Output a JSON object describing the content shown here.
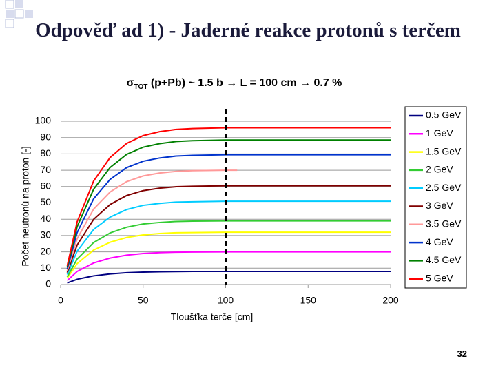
{
  "slide": {
    "title": "Odpověď ad 1) - Jaderné reakce protonů s terčem",
    "subtitle_symbol": "σ",
    "subtitle_subscript": "TOT",
    "subtitle": "(p+Pb) ~ 1.5 b → L = 100 cm → 0.7 %",
    "page_number": "32"
  },
  "chart_data": {
    "type": "line",
    "x_label": "Tloušťka terče [cm]",
    "y_label": "Počet neutronů na proton [-]",
    "x": [
      4,
      10,
      20,
      30,
      40,
      50,
      60,
      70,
      80,
      100,
      107,
      120,
      150,
      200
    ],
    "xlim": [
      0,
      200
    ],
    "xticks": [
      0,
      50,
      100,
      150,
      200
    ],
    "ylim": [
      0,
      100
    ],
    "yticks": [
      0,
      10,
      20,
      30,
      40,
      50,
      60,
      70,
      80,
      90,
      100
    ],
    "grid": true,
    "legend": "right",
    "reference_line_x": 100,
    "series": [
      {
        "name": "0.5 GeV",
        "color": "#000080",
        "values": [
          1,
          3.2,
          5.3,
          6.5,
          7.2,
          7.6,
          7.8,
          7.9,
          8,
          8,
          8,
          8,
          8,
          8
        ]
      },
      {
        "name": "1 GeV",
        "color": "#ff00ff",
        "values": [
          2.4,
          8,
          13.2,
          16.2,
          18,
          19,
          19.5,
          19.8,
          19.9,
          20,
          20,
          20,
          20,
          20
        ]
      },
      {
        "name": "1.5 GeV",
        "color": "#ffff00",
        "values": [
          3.8,
          12.8,
          21.1,
          25.9,
          28.8,
          30.4,
          31.2,
          31.7,
          31.8,
          32,
          32,
          32,
          32,
          32
        ]
      },
      {
        "name": "2 GeV",
        "color": "#33cc33",
        "values": [
          4.7,
          15.6,
          25.7,
          31.6,
          35.1,
          37.1,
          38,
          38.6,
          38.8,
          39,
          39,
          39,
          39,
          39
        ]
      },
      {
        "name": "2.5 GeV",
        "color": "#00ccff",
        "values": [
          6.1,
          20.4,
          33.7,
          41.3,
          45.9,
          48.5,
          49.7,
          50.5,
          50.7,
          51,
          51,
          51,
          51,
          51
        ]
      },
      {
        "name": "3 GeV",
        "color": "#800000",
        "values": [
          7.3,
          24.2,
          39.9,
          49,
          54.5,
          57.5,
          59,
          59.9,
          60.2,
          60.5,
          60.5,
          60.5,
          60.5,
          60.5
        ]
      },
      {
        "name": "3.5 GeV",
        "color": "#ff9999",
        "values": [
          8.4,
          28,
          46.2,
          56.7,
          63,
          66.5,
          68.3,
          69.3,
          69.7,
          70,
          70,
          null,
          null,
          null
        ]
      },
      {
        "name": "4 GeV",
        "color": "#0033cc",
        "values": [
          9.5,
          31.8,
          52.5,
          64.4,
          71.6,
          75.5,
          77.5,
          78.7,
          79.1,
          79.5,
          79.5,
          79.5,
          79.5,
          79.5
        ]
      },
      {
        "name": "4.5 GeV",
        "color": "#008000",
        "values": [
          10.6,
          35.4,
          58.4,
          71.7,
          79.7,
          84.1,
          86.3,
          87.6,
          88.1,
          88.5,
          88.5,
          88.5,
          88.5,
          88.5
        ]
      },
      {
        "name": "5 GeV",
        "color": "#ff0000",
        "values": [
          11.5,
          38.4,
          63.4,
          77.8,
          86.4,
          91.2,
          93.6,
          95,
          95.5,
          96,
          96,
          96,
          96,
          96
        ]
      }
    ]
  }
}
